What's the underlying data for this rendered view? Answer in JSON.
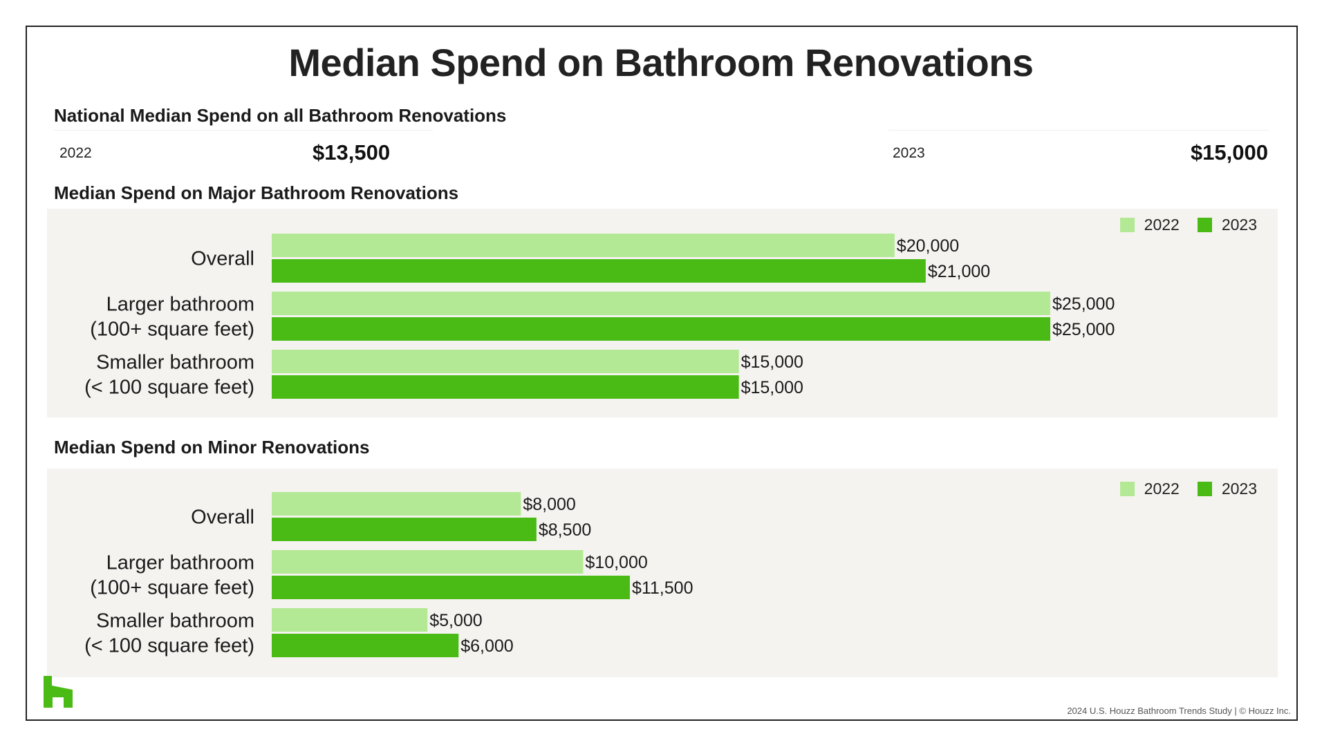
{
  "title": "Median Spend on Bathroom Renovations",
  "national": {
    "heading": "National Median Spend on all Bathroom Renovations",
    "year1": "2022",
    "value1": "$13,500",
    "year2": "2023",
    "value2": "$15,000"
  },
  "colors": {
    "c2022": "#b3e994",
    "c2023": "#4aba14",
    "panel": "#f4f3f0"
  },
  "chart_data": [
    {
      "type": "bar",
      "orientation": "horizontal",
      "title": "Median Spend on Major Bathroom Renovations",
      "categories": [
        "Overall",
        "Larger bathroom\n(100+ square feet)",
        "Smaller bathroom\n(< 100 square feet)"
      ],
      "series": [
        {
          "name": "2022",
          "values": [
            20000,
            25000,
            15000
          ],
          "labels": [
            "$20,000",
            "$25,000",
            "$15,000"
          ]
        },
        {
          "name": "2023",
          "values": [
            21000,
            25000,
            15000
          ],
          "labels": [
            "$21,000",
            "$25,000",
            "$15,000"
          ]
        }
      ],
      "xlim": [
        0,
        25000
      ],
      "legend": "top-right",
      "grid": false
    },
    {
      "type": "bar",
      "orientation": "horizontal",
      "title": "Median Spend on Minor Renovations",
      "categories": [
        "Overall",
        "Larger bathroom\n(100+ square feet)",
        "Smaller bathroom\n(< 100 square feet)"
      ],
      "series": [
        {
          "name": "2022",
          "values": [
            8000,
            10000,
            5000
          ],
          "labels": [
            "$8,000",
            "$10,000",
            "$5,000"
          ]
        },
        {
          "name": "2023",
          "values": [
            8500,
            11500,
            6000
          ],
          "labels": [
            "$8,500",
            "$11,500",
            "$6,000"
          ]
        }
      ],
      "xlim": [
        0,
        25000
      ],
      "legend": "top-right",
      "grid": false
    }
  ],
  "footer": "2024 U.S. Houzz Bathroom Trends Study  |  © Houzz Inc.",
  "logo_icon": "houzz-logo-icon"
}
